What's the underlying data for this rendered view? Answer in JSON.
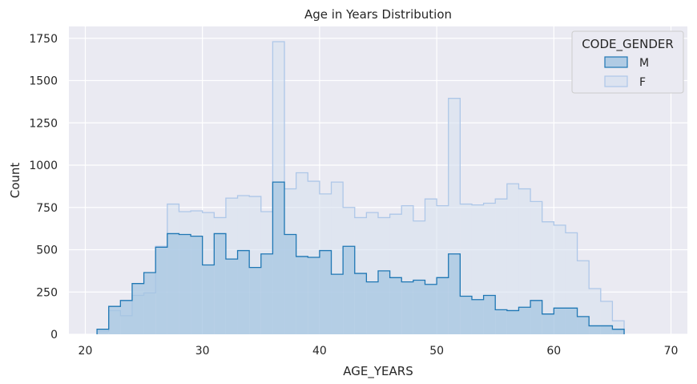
{
  "chart_data": {
    "type": "histogram-step",
    "title": "Age in Years Distribution",
    "xlabel": "AGE_YEARS",
    "ylabel": "Count",
    "xlim": [
      18.6,
      71.4
    ],
    "ylim": [
      0,
      1820
    ],
    "xticks": [
      20,
      30,
      40,
      50,
      60,
      70
    ],
    "yticks": [
      0,
      250,
      500,
      750,
      1000,
      1250,
      1500,
      1750
    ],
    "grid": true,
    "legend": {
      "title": "CODE_GENDER",
      "placement": "top-right"
    },
    "bin_start": 21,
    "bin_width": 1,
    "series": [
      {
        "name": "M",
        "color": "#1f77b4",
        "fill": "#a6c5e2",
        "values": [
          30,
          165,
          200,
          300,
          365,
          515,
          595,
          590,
          580,
          410,
          595,
          445,
          495,
          395,
          475,
          900,
          590,
          460,
          455,
          495,
          355,
          520,
          360,
          310,
          375,
          335,
          310,
          320,
          295,
          335,
          475,
          225,
          205,
          230,
          145,
          140,
          160,
          200,
          120,
          155,
          155,
          105,
          50,
          50,
          30
        ]
      },
      {
        "name": "F",
        "color": "#aec7e8",
        "fill": "#d5e0ef",
        "values": [
          15,
          140,
          110,
          230,
          245,
          520,
          770,
          725,
          730,
          720,
          690,
          805,
          820,
          815,
          725,
          1730,
          860,
          955,
          905,
          830,
          900,
          750,
          690,
          720,
          690,
          710,
          760,
          670,
          800,
          760,
          1395,
          770,
          765,
          775,
          800,
          890,
          860,
          785,
          665,
          645,
          600,
          435,
          270,
          195,
          80
        ]
      }
    ]
  }
}
